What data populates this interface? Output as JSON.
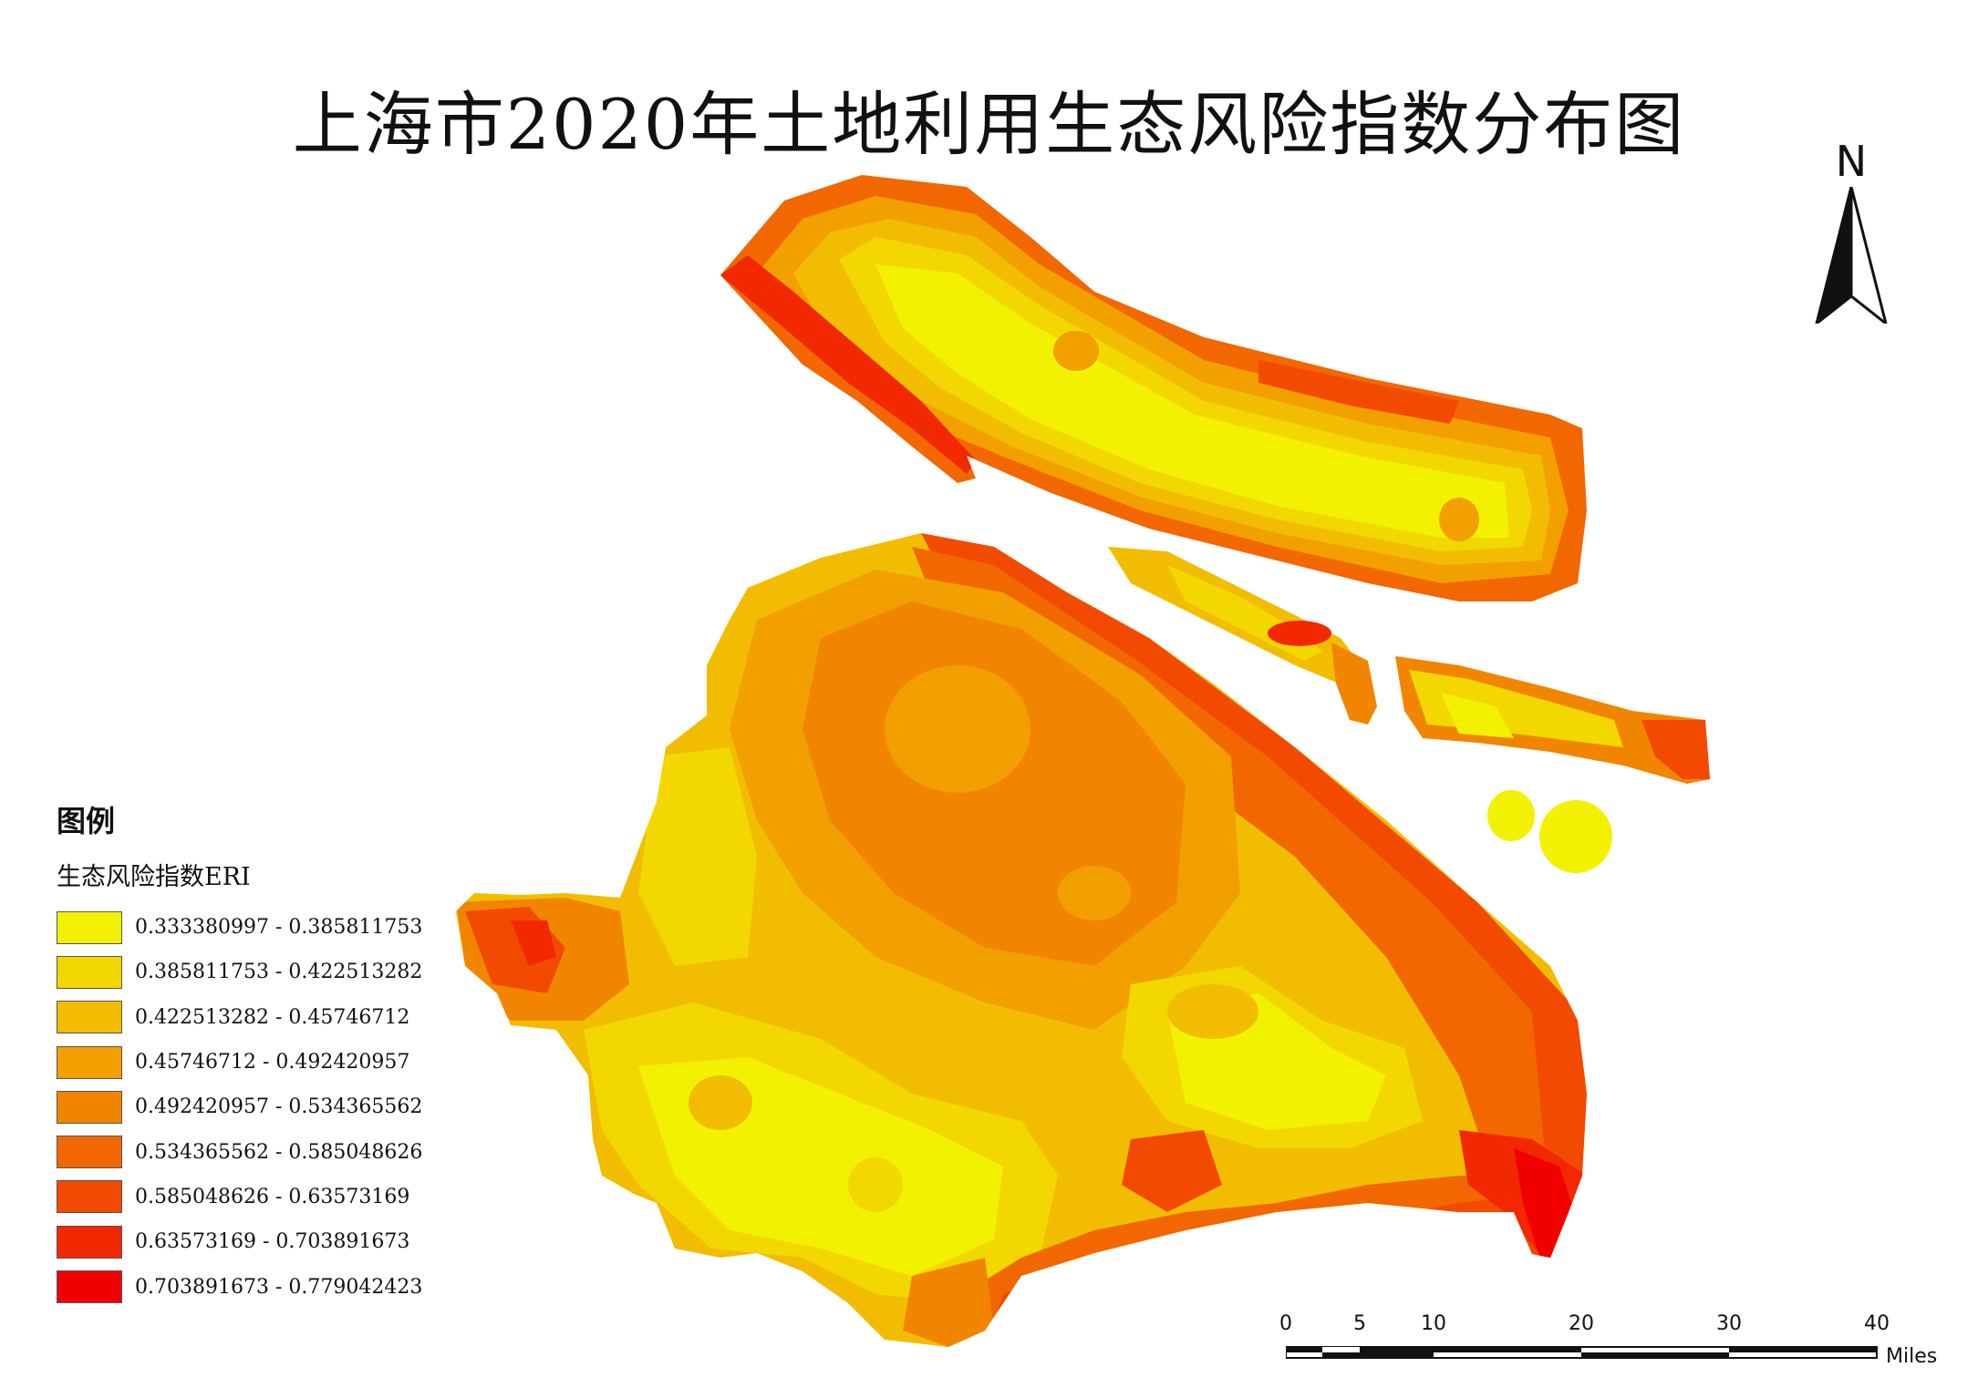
{
  "title": "上海市2020年土地利用生态风险指数分布图",
  "north_arrow": {
    "letter": "N"
  },
  "legend": {
    "heading": "图例",
    "subtitle": "生态风险指数ERI",
    "classes": [
      {
        "label": "0.333380997 - 0.385811753",
        "color": "#f2f200"
      },
      {
        "label": "0.385811753 - 0.422513282",
        "color": "#f2d800"
      },
      {
        "label": "0.422513282 - 0.45746712",
        "color": "#f2bd00"
      },
      {
        "label": "0.45746712 - 0.492420957",
        "color": "#f29f00"
      },
      {
        "label": "0.492420957 - 0.534365562",
        "color": "#f28500"
      },
      {
        "label": "0.534365562 - 0.585048626",
        "color": "#f26700"
      },
      {
        "label": "0.585048626 - 0.63573169",
        "color": "#f24a00"
      },
      {
        "label": "0.63573169 - 0.703891673",
        "color": "#f22800"
      },
      {
        "label": "0.703891673 - 0.779042423",
        "color": "#f20000"
      }
    ]
  },
  "scale_bar": {
    "ticks": [
      "0",
      "5",
      "10",
      "20",
      "30",
      "40"
    ],
    "unit": "Miles"
  }
}
